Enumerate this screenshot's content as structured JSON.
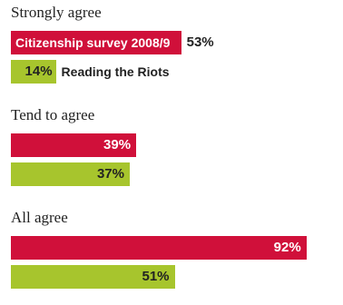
{
  "chart_data": {
    "type": "bar",
    "orientation": "horizontal",
    "categories": [
      "Strongly agree",
      "Tend to agree",
      "All agree"
    ],
    "series": [
      {
        "name": "Citizenship survey 2008/9",
        "values": [
          53,
          39,
          92
        ],
        "labels": [
          "53%",
          "39%",
          "92%"
        ],
        "color": "#d0103a"
      },
      {
        "name": "Reading the Riots",
        "values": [
          14,
          37,
          51
        ],
        "labels": [
          "14%",
          "37%",
          "51%"
        ],
        "color": "#a7c52d"
      }
    ],
    "xlim": [
      0,
      100
    ],
    "grid": false,
    "legend": "inline"
  }
}
